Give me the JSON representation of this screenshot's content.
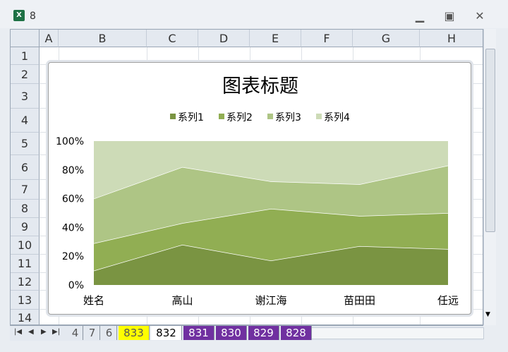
{
  "window": {
    "title": "8",
    "app_icon": "excel-icon"
  },
  "columns": [
    "A",
    "B",
    "C",
    "D",
    "E",
    "F",
    "G",
    "H"
  ],
  "rows": [
    "1",
    "2",
    "3",
    "4",
    "5",
    "6",
    "7",
    "8",
    "9",
    "10",
    "11",
    "12",
    "13",
    "14"
  ],
  "sheet_tabs": [
    {
      "label": "4",
      "color": "#e4e9f0"
    },
    {
      "label": "7",
      "color": "#e4e9f0"
    },
    {
      "label": "6",
      "color": "#e4e9f0"
    },
    {
      "label": "833",
      "color": "#ffff00"
    },
    {
      "label": "832",
      "color": "#ffffff",
      "active": true
    },
    {
      "label": "831",
      "color": "#7030a0"
    },
    {
      "label": "830",
      "color": "#7030a0"
    },
    {
      "label": "829",
      "color": "#7030a0"
    },
    {
      "label": "828",
      "color": "#7030a0"
    }
  ],
  "chart_data": {
    "type": "area",
    "stacking": "percent",
    "title": "图表标题",
    "categories": [
      "姓名",
      "高山",
      "谢江海",
      "苗田田",
      "任远"
    ],
    "series": [
      {
        "name": "系列1",
        "values": [
          10,
          28,
          17,
          27,
          25
        ],
        "color": "#7a9442"
      },
      {
        "name": "系列2",
        "values": [
          19,
          15,
          36,
          21,
          25
        ],
        "color": "#91ae53"
      },
      {
        "name": "系列3",
        "values": [
          31,
          39,
          19,
          22,
          33
        ],
        "color": "#aec585"
      },
      {
        "name": "系列4",
        "values": [
          40,
          18,
          28,
          30,
          17
        ],
        "color": "#cddbb7"
      }
    ],
    "yticks": [
      "0%",
      "20%",
      "40%",
      "60%",
      "80%",
      "100%"
    ],
    "ylim": [
      0,
      100
    ],
    "legend": "top",
    "grid": false
  }
}
